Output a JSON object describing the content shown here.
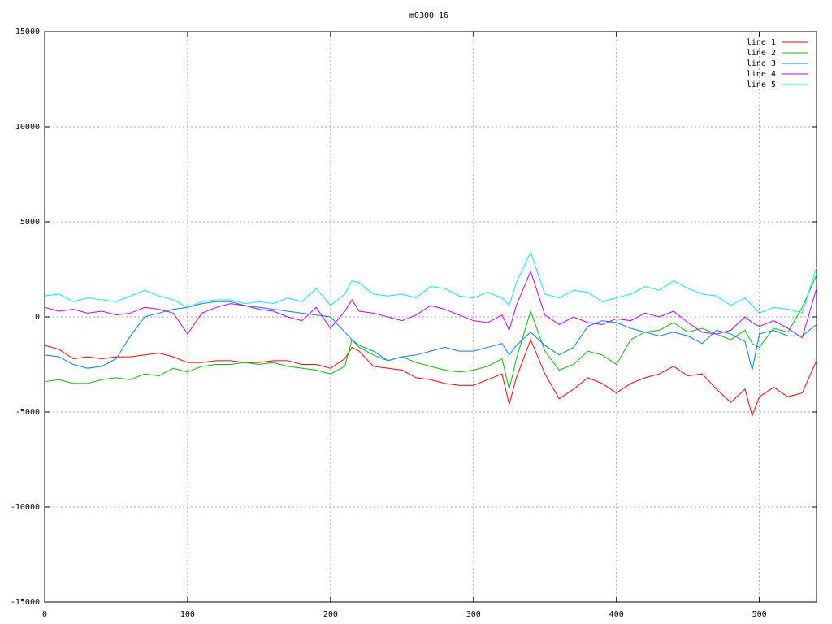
{
  "chart_data": {
    "type": "line",
    "title": "m0300_16",
    "x": [
      0,
      10,
      20,
      30,
      40,
      50,
      60,
      70,
      80,
      90,
      100,
      110,
      120,
      130,
      140,
      150,
      160,
      170,
      180,
      190,
      200,
      210,
      215,
      220,
      230,
      240,
      250,
      260,
      270,
      280,
      290,
      300,
      310,
      320,
      325,
      330,
      340,
      350,
      360,
      370,
      380,
      390,
      400,
      410,
      420,
      430,
      440,
      450,
      460,
      470,
      480,
      490,
      495,
      500,
      510,
      520,
      530,
      540
    ],
    "series": [
      {
        "name": "line 1",
        "color": "#ff0000",
        "values": [
          -1500,
          -1700,
          -2200,
          -2100,
          -2200,
          -2100,
          -2100,
          -2000,
          -1900,
          -2100,
          -2400,
          -2400,
          -2300,
          -2300,
          -2400,
          -2400,
          -2300,
          -2300,
          -2500,
          -2500,
          -2700,
          -2200,
          -1600,
          -1800,
          -2600,
          -2700,
          -2800,
          -3200,
          -3300,
          -3500,
          -3600,
          -3600,
          -3300,
          -3000,
          -4600,
          -3200,
          -1200,
          -3000,
          -4300,
          -3800,
          -3200,
          -3500,
          -4000,
          -3500,
          -3200,
          -3000,
          -2600,
          -3100,
          -3000,
          -3800,
          -4500,
          -3800,
          -5200,
          -4200,
          -3700,
          -4200,
          -4000,
          -2300
        ]
      },
      {
        "name": "line 2",
        "color": "#00c000",
        "values": [
          -3400,
          -3300,
          -3500,
          -3500,
          -3300,
          -3200,
          -3300,
          -3000,
          -3100,
          -2700,
          -2900,
          -2600,
          -2500,
          -2500,
          -2400,
          -2500,
          -2400,
          -2600,
          -2700,
          -2800,
          -3000,
          -2600,
          -1200,
          -1600,
          -2000,
          -2300,
          -2100,
          -2400,
          -2600,
          -2800,
          -2900,
          -2800,
          -2600,
          -2200,
          -3800,
          -2200,
          300,
          -1800,
          -2800,
          -2500,
          -1800,
          -2000,
          -2500,
          -1200,
          -800,
          -700,
          -300,
          -800,
          -600,
          -900,
          -1200,
          -700,
          -1400,
          -1600,
          -600,
          -800,
          500,
          2200
        ]
      },
      {
        "name": "line 3",
        "color": "#0080ff",
        "values": [
          -2000,
          -2100,
          -2500,
          -2700,
          -2600,
          -2200,
          -1000,
          0,
          200,
          400,
          500,
          700,
          800,
          800,
          600,
          500,
          400,
          300,
          200,
          100,
          0,
          -800,
          -1200,
          -1500,
          -1800,
          -2300,
          -2100,
          -2000,
          -1800,
          -1600,
          -1800,
          -1800,
          -1600,
          -1400,
          -2000,
          -1500,
          -800,
          -1500,
          -2000,
          -1600,
          -500,
          -200,
          -300,
          -600,
          -800,
          -1000,
          -800,
          -1000,
          -1400,
          -700,
          -900,
          -1300,
          -2800,
          -900,
          -700,
          -1000,
          -1000,
          -400
        ]
      },
      {
        "name": "line 4",
        "color": "#c000ff",
        "values": [
          500,
          300,
          400,
          200,
          300,
          100,
          200,
          500,
          400,
          200,
          -900,
          200,
          500,
          700,
          600,
          400,
          300,
          0,
          -200,
          500,
          -600,
          300,
          900,
          300,
          200,
          0,
          -200,
          100,
          600,
          400,
          100,
          -200,
          -300,
          100,
          -700,
          600,
          2400,
          100,
          -400,
          0,
          -300,
          -400,
          -100,
          -200,
          200,
          0,
          300,
          -300,
          -800,
          -900,
          -700,
          0,
          -300,
          -500,
          -200,
          -600,
          -1100,
          1500
        ]
      },
      {
        "name": "line 5",
        "color": "#00eeee",
        "values": [
          1100,
          1200,
          800,
          1000,
          900,
          800,
          1100,
          1400,
          1100,
          900,
          500,
          800,
          900,
          900,
          700,
          800,
          700,
          1000,
          800,
          1500,
          600,
          1200,
          1900,
          1800,
          1200,
          1100,
          1200,
          1000,
          1600,
          1500,
          1100,
          1000,
          1300,
          1000,
          600,
          1800,
          3400,
          1200,
          1000,
          1400,
          1300,
          800,
          1000,
          1200,
          1600,
          1400,
          1900,
          1500,
          1200,
          1100,
          600,
          1000,
          600,
          200,
          500,
          400,
          200,
          2600
        ]
      }
    ],
    "xlim": [
      0,
      540
    ],
    "ylim": [
      -15000,
      15000
    ],
    "xticks": [
      0,
      100,
      200,
      300,
      400,
      500
    ],
    "yticks": [
      -15000,
      -10000,
      -5000,
      0,
      5000,
      10000,
      15000
    ],
    "grid": true,
    "legend": "top-right"
  }
}
